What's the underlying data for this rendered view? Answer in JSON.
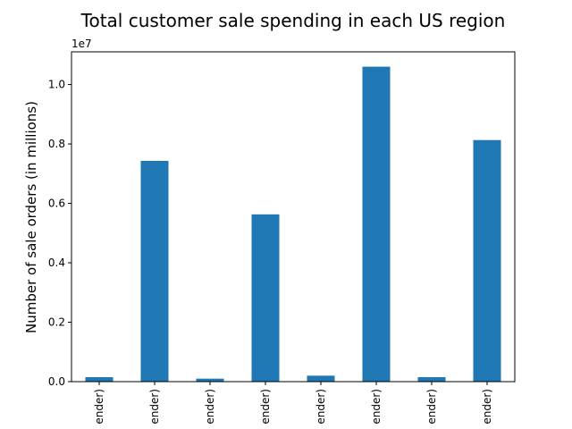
{
  "chart_data": {
    "type": "bar",
    "title": "Total customer sale spending in each US region",
    "xlabel": "",
    "ylabel": "Number of sale orders (in millions)",
    "y_offset_label": "1e7",
    "ylim": [
      0,
      1.11
    ],
    "yticks": [
      0.0,
      0.2,
      0.4,
      0.6,
      0.8,
      1.0
    ],
    "ytick_labels": [
      "0.0",
      "0.2",
      "0.4",
      "0.6",
      "0.8",
      "1.0"
    ],
    "categories": [
      "ender)",
      "ender)",
      "ender)",
      "ender)",
      "ender)",
      "ender)",
      "ender)",
      "ender)"
    ],
    "values": [
      0.015,
      0.743,
      0.01,
      0.563,
      0.02,
      1.06,
      0.015,
      0.813
    ],
    "bar_color": "#1f77b4",
    "grid": false,
    "legend": "none"
  }
}
